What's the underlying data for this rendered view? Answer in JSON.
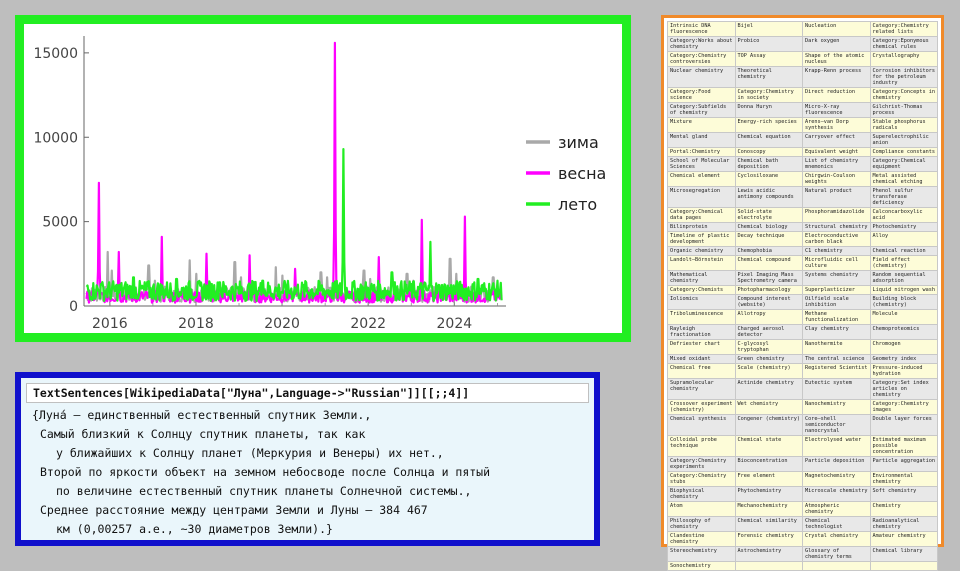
{
  "chart_data": {
    "type": "line",
    "x_ticks": [
      "2016",
      "2018",
      "2020",
      "2022",
      "2024"
    ],
    "y_ticks": [
      "0",
      "5000",
      "10000",
      "15000"
    ],
    "ylim": [
      0,
      16000
    ],
    "xlim": [
      2015.4,
      2025.2
    ],
    "legend_position": "right",
    "grid": false,
    "series": [
      {
        "name": "зима",
        "color": "#a9a9a9",
        "peaks": [
          [
            2015.95,
            3200
          ],
          [
            2016.05,
            2100
          ],
          [
            2016.9,
            2400
          ],
          [
            2017.05,
            1500
          ],
          [
            2017.85,
            2700
          ],
          [
            2018.0,
            1900
          ],
          [
            2018.9,
            2600
          ],
          [
            2019.05,
            1700
          ],
          [
            2019.85,
            2300
          ],
          [
            2020.0,
            1800
          ],
          [
            2020.9,
            2000
          ],
          [
            2021.05,
            1700
          ],
          [
            2021.9,
            2100
          ],
          [
            2022.05,
            1600
          ],
          [
            2022.9,
            1900
          ],
          [
            2023.05,
            1500
          ],
          [
            2023.9,
            2800
          ],
          [
            2024.05,
            1900
          ],
          [
            2024.9,
            1700
          ]
        ]
      },
      {
        "name": "весна",
        "color": "#ff00ff",
        "peaks": [
          [
            2015.75,
            7300
          ],
          [
            2016.2,
            3200
          ],
          [
            2017.2,
            4100
          ],
          [
            2018.25,
            3100
          ],
          [
            2019.25,
            3000
          ],
          [
            2020.3,
            2200
          ],
          [
            2021.22,
            15600
          ],
          [
            2022.25,
            2900
          ],
          [
            2023.25,
            5100
          ],
          [
            2024.25,
            5300
          ]
        ]
      },
      {
        "name": "лето",
        "color": "#22ee22",
        "peaks": [
          [
            2015.8,
            1300
          ],
          [
            2016.55,
            1700
          ],
          [
            2017.55,
            1600
          ],
          [
            2018.55,
            1400
          ],
          [
            2019.55,
            1500
          ],
          [
            2020.55,
            1400
          ],
          [
            2021.42,
            9300
          ],
          [
            2022.55,
            2000
          ],
          [
            2023.45,
            3800
          ],
          [
            2024.55,
            1600
          ]
        ]
      }
    ]
  },
  "code": {
    "input": "TextSentences[WikipediaData[\"Луна\",Language->\"Russian\"]][[;;4]]",
    "output_lines": [
      "{Луна́ — единственный естественный спутник Земли.,",
      "Самый близкий к Солнцу спутник планеты, так как",
      "у ближайших к Солнцу планет (Меркурия и Венеры) их нет.,",
      "Второй по яркости объект на земном небосводе после Солнца и пятый",
      "по величине естественный спутник планеты Солнечной системы.,",
      "Среднее расстояние между центрами Земли и Луны — 384 467",
      "км (0,00257 а.е., ~30 диаметров Земли).}"
    ]
  },
  "table": {
    "rows": [
      [
        "Intrinsic DNA fluorescence",
        "Bijel",
        "Nucleation",
        "Category:Chemistry related lists"
      ],
      [
        "Category:Works about chemistry",
        "Probico",
        "Dark oxygen",
        "Category:Eponymous chemical rules"
      ],
      [
        "Category:Chemistry controversies",
        "TOP Assay",
        "Shape of the atomic nucleus",
        "Crystallography"
      ],
      [
        "Nuclear chemistry",
        "Theoretical chemistry",
        "Krapp-Renn process",
        "Corrosion inhibitors for the petroleum industry"
      ],
      [
        "Category:Food science",
        "Category:Chemistry in society",
        "Direct reduction",
        "Category:Concepts in chemistry"
      ],
      [
        "Category:Subfields of chemistry",
        "Donna Huryn",
        "Micro-X-ray fluorescence",
        "Gilchrist-Thomas process"
      ],
      [
        "Mixture",
        "Energy-rich species",
        "Arens–van Dorp synthesis",
        "Stable phosphorus radicals"
      ],
      [
        "Mental gland",
        "Chemical equation",
        "Carryover effect",
        "Superelectrophilic anion"
      ],
      [
        "Portal:Chemistry",
        "Conoscopy",
        "Equivalent weight",
        "Compliance constants"
      ],
      [
        "School of Molecular Sciences",
        "Chemical bath deposition",
        "List of chemistry mnemonics",
        "Category:Chemical equipment"
      ],
      [
        "Chemical element",
        "Cyclosiloxane",
        "Chirgwin-Coulson weights",
        "Metal assisted chemical etching"
      ],
      [
        "Microsegregation",
        "Lewis acidic antimony compounds",
        "Natural product",
        "Phenol sulfur transferase deficiency"
      ],
      [
        "Category:Chemical data pages",
        "Solid-state electrolyte",
        "Phosphoramidazolide",
        "Calconcarboxylic acid"
      ],
      [
        "Bilinprotein",
        "Chemical biology",
        "Structural chemistry",
        "Photochemistry"
      ],
      [
        "Timeline of plastic development",
        "Decay technique",
        "Electroconductive carbon black",
        "Alloy"
      ],
      [
        "Organic chemistry",
        "Chemophobia",
        "C1 chemistry",
        "Chemical reaction"
      ],
      [
        "Landolt–Börnstein",
        "Chemical compound",
        "Microfluidic cell culture",
        "Field effect (chemistry)"
      ],
      [
        "Mathematical chemistry",
        "Pixel Imaging Mass Spectrometry camera",
        "Systems chemistry",
        "Random sequential adsorption"
      ],
      [
        "Category:Chemists",
        "Photopharmacology",
        "Superplasticizer",
        "Liquid nitrogen wash"
      ],
      [
        "Ioliomics",
        "Compound interest (website)",
        "Oilfield scale inhibition",
        "Building block (chemistry)"
      ],
      [
        "Triboluminescence",
        "Allotropy",
        "Methane functionalization",
        "Molecule"
      ],
      [
        "Rayleigh fractionation",
        "Charged aerosol detector",
        "Clay chemistry",
        "Chemoproteomics"
      ],
      [
        "Defriester chart",
        "C-glycosyl tryptophan",
        "Nanothermite",
        "Chromogen"
      ],
      [
        "Mixed oxidant",
        "Green chemistry",
        "The central science",
        "Geometry index"
      ],
      [
        "Chemical free",
        "Scale (chemistry)",
        "Registered Scientist",
        "Pressure-induced hydration"
      ],
      [
        "Supramolecular chemistry",
        "Actinide chemistry",
        "Eutectic system",
        "Category:Set index articles on chemistry"
      ],
      [
        "Crossover experiment (chemistry)",
        "Wet chemistry",
        "Nanochemistry",
        "Category:Chemistry images"
      ],
      [
        "Chemical synthesis",
        "Congener (chemistry)",
        "Core–shell semiconductor nanocrystal",
        "Double layer forces"
      ],
      [
        "Colloidal probe technique",
        "Chemical state",
        "Electrolysed water",
        "Estimated maximum possible concentration"
      ],
      [
        "Category:Chemistry experiments",
        "Bioconcentration",
        "Particle deposition",
        "Particle aggregation"
      ],
      [
        "Category:Chemistry stubs",
        "Free element",
        "Magnetochemistry",
        "Environmental chemistry"
      ],
      [
        "Biophysical chemistry",
        "Phytochemistry",
        "Microscale chemistry",
        "Soft chemistry"
      ],
      [
        "Atom",
        "Mechanochemistry",
        "Atmospheric chemistry",
        "Chemistry"
      ],
      [
        "Philosophy of chemistry",
        "Chemical similarity",
        "Chemical technologist",
        "Radioanalytical chemistry"
      ],
      [
        "Clandestine chemistry",
        "Forensic chemistry",
        "Crystal chemistry",
        "Amateur chemistry"
      ],
      [
        "Stereochemistry",
        "Astrochemistry",
        "Glossary of chemistry terms",
        "Chemical library"
      ],
      [
        "Sonochemistry",
        "",
        "",
        ""
      ]
    ]
  }
}
